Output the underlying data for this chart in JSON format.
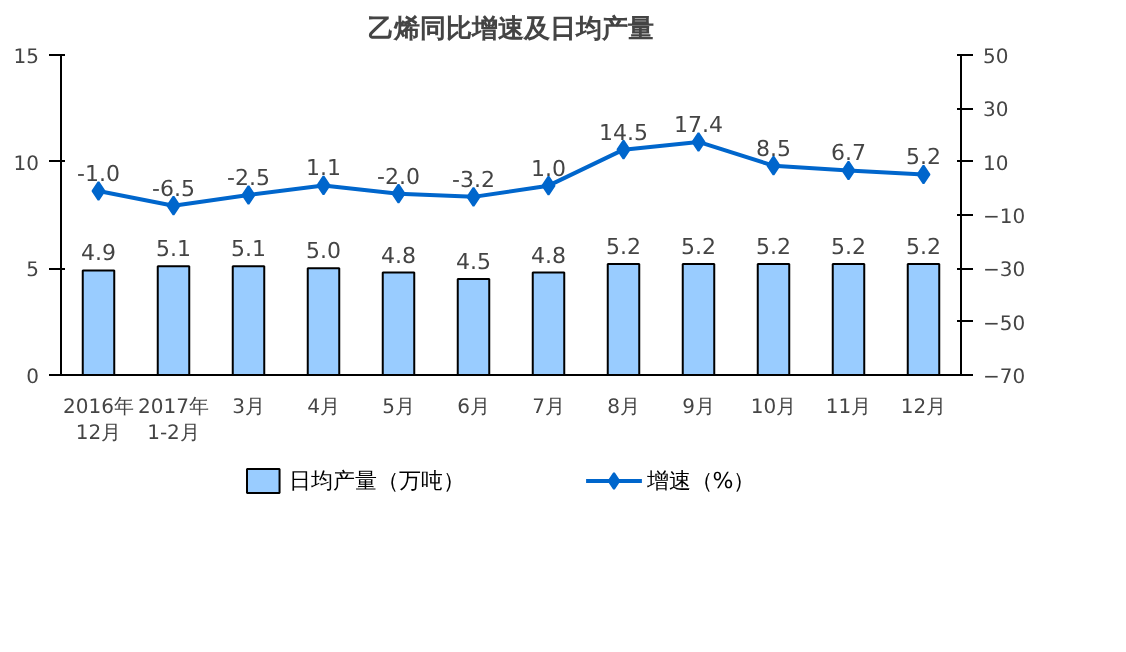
{
  "chart_data": {
    "type": "bar",
    "title": "乙烯同比增速及日均产量",
    "categories": [
      "2016年\n12月",
      "2017年\n1-2月",
      "3月",
      "4月",
      "5月",
      "6月",
      "7月",
      "8月",
      "9月",
      "10月",
      "11月",
      "12月"
    ],
    "series": [
      {
        "name": "日均产量（万吨）",
        "color": "#99ccff",
        "values": [
          4.9,
          5.1,
          5.1,
          5.0,
          4.8,
          4.5,
          4.8,
          5.2,
          5.2,
          5.2,
          5.2,
          5.2
        ],
        "value_labels": [
          "4.9",
          "5.1",
          "5.1",
          "5.0",
          "4.8",
          "4.5",
          "4.8",
          "5.2",
          "5.2",
          "5.2",
          "5.2",
          "5.2"
        ]
      },
      {
        "name": "增速（%）",
        "type": "line",
        "axis": "y2",
        "color": "#0066cc",
        "marker": "diamond",
        "values": [
          -1.0,
          -6.5,
          -2.5,
          1.1,
          -2.0,
          -3.2,
          1.0,
          14.5,
          17.4,
          8.5,
          6.7,
          5.2
        ],
        "value_labels": [
          "-1.0",
          "-6.5",
          "-2.5",
          "1.1",
          "-2.0",
          "-3.2",
          "1.0",
          "14.5",
          "17.4",
          "8.5",
          "6.7",
          "5.2"
        ]
      }
    ],
    "ylim": [
      0,
      15
    ],
    "yticks": [
      0,
      5,
      10,
      15
    ],
    "y2lim": [
      -70,
      50
    ],
    "y2ticks": [
      -70,
      -50,
      -30,
      -10,
      10,
      30,
      50
    ],
    "grid": false,
    "legend": "bottom"
  }
}
